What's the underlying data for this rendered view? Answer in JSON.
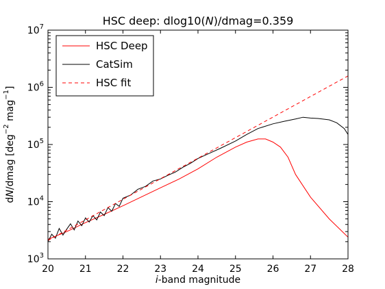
{
  "chart_data": {
    "type": "line",
    "title": {
      "prefix": "HSC deep: dlog10(",
      "symbol": "N",
      "suffix": ")/dmag=0.359"
    },
    "xlabel": {
      "symbol": "i",
      "text": "-band magnitude"
    },
    "ylabel": {
      "prefix": "d",
      "symbol": "N",
      "main": "/dmag [deg",
      "exp1": "−2",
      "mid": " mag",
      "exp2": "−1",
      "end": "]"
    },
    "xlim": [
      20,
      28
    ],
    "ylim": [
      1000,
      10000000
    ],
    "yscale": "log",
    "x_ticks": [
      "20",
      "21",
      "22",
      "23",
      "24",
      "25",
      "26",
      "27",
      "28"
    ],
    "y_ticks": [
      {
        "value": 1000,
        "base": "10",
        "exp": "3"
      },
      {
        "value": 10000,
        "base": "10",
        "exp": "4"
      },
      {
        "value": 100000,
        "base": "10",
        "exp": "5"
      },
      {
        "value": 1000000,
        "base": "10",
        "exp": "6"
      },
      {
        "value": 10000000,
        "base": "10",
        "exp": "7"
      }
    ],
    "legend_position": "top-left",
    "series": [
      {
        "name": "HSC Deep",
        "color": "#ff0000",
        "style": "solid",
        "x": [
          20.0,
          20.5,
          21.0,
          21.5,
          22.0,
          22.5,
          23.0,
          23.5,
          24.0,
          24.5,
          25.0,
          25.3,
          25.6,
          25.8,
          26.0,
          26.2,
          26.4,
          26.6,
          27.0,
          27.5,
          28.0
        ],
        "y": [
          2200,
          3000,
          4300,
          6000,
          8500,
          12200,
          17500,
          25000,
          37500,
          60000,
          90000,
          110000,
          125000,
          125000,
          110000,
          90000,
          60000,
          30000,
          12000,
          5000,
          2400
        ]
      },
      {
        "name": "CatSim",
        "color": "#000000",
        "style": "solid",
        "x": [
          20.0,
          20.1,
          20.2,
          20.3,
          20.4,
          20.5,
          20.6,
          20.7,
          20.8,
          20.9,
          21.0,
          21.1,
          21.2,
          21.3,
          21.4,
          21.5,
          21.6,
          21.7,
          21.8,
          21.9,
          22.0,
          22.2,
          22.4,
          22.6,
          22.8,
          23.0,
          23.2,
          23.4,
          23.6,
          23.8,
          24.0,
          24.3,
          24.6,
          25.0,
          25.3,
          25.6,
          26.0,
          26.3,
          26.6,
          26.8,
          27.0,
          27.2,
          27.5,
          27.7,
          27.9,
          28.0
        ],
        "y": [
          2000,
          2700,
          2300,
          3400,
          2600,
          3300,
          4100,
          3200,
          4600,
          3800,
          5200,
          4400,
          5700,
          4800,
          6600,
          5700,
          7900,
          6800,
          9300,
          8300,
          11500,
          13000,
          16500,
          18500,
          23000,
          25000,
          29000,
          33000,
          40000,
          47000,
          57000,
          70000,
          86000,
          115000,
          150000,
          190000,
          230000,
          255000,
          280000,
          300000,
          290000,
          285000,
          270000,
          240000,
          190000,
          150000
        ]
      },
      {
        "name": "HSC fit",
        "color": "#ff0000",
        "style": "dashed",
        "x": [
          20.0,
          28.0
        ],
        "y": [
          2100,
          1580000
        ]
      }
    ]
  }
}
